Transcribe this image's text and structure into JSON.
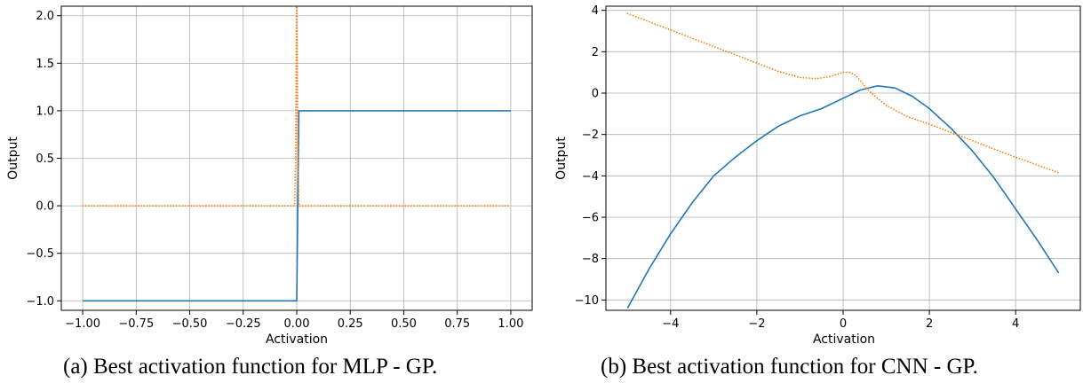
{
  "chart_data": [
    {
      "type": "line",
      "title": "",
      "xlabel": "Activation",
      "ylabel": "Output",
      "xlim": [
        -1.1,
        1.1
      ],
      "ylim": [
        -1.1,
        2.1
      ],
      "grid": true,
      "xticks": [
        -1.0,
        -0.75,
        -0.5,
        -0.25,
        0.0,
        0.25,
        0.5,
        0.75,
        1.0
      ],
      "xtick_labels": [
        "−1.00",
        "−0.75",
        "−0.50",
        "−0.25",
        "0.00",
        "0.25",
        "0.50",
        "0.75",
        "1.00"
      ],
      "yticks": [
        -1.0,
        -0.5,
        0.0,
        0.5,
        1.0,
        1.5,
        2.0
      ],
      "ytick_labels": [
        "−1.0",
        "−0.5",
        "0.0",
        "0.5",
        "1.0",
        "1.5",
        "2.0"
      ],
      "series": [
        {
          "style": "solid",
          "color": "#1f77b4",
          "x": [
            -1.0,
            0.0,
            0.01,
            1.0
          ],
          "y": [
            -1.0,
            -1.0,
            1.0,
            1.0
          ]
        },
        {
          "style": "dotted",
          "color": "#ff7f0e",
          "x": [
            -1.0,
            -0.01,
            -0.006,
            -0.003,
            0.0,
            0.003,
            0.006,
            0.01,
            1.0
          ],
          "y": [
            0.0,
            0.0,
            0.5,
            1.5,
            2.5,
            1.5,
            0.5,
            0.0,
            0.0
          ]
        }
      ]
    },
    {
      "type": "line",
      "title": "",
      "xlabel": "Activation",
      "ylabel": "Output",
      "xlim": [
        -5.5,
        5.5
      ],
      "ylim": [
        -10.5,
        4.2
      ],
      "grid": true,
      "xticks": [
        -4,
        -2,
        0,
        2,
        4
      ],
      "xtick_labels": [
        "−4",
        "−2",
        "0",
        "2",
        "4"
      ],
      "yticks": [
        -10,
        -8,
        -6,
        -4,
        -2,
        0,
        2,
        4
      ],
      "ytick_labels": [
        "−10",
        "−8",
        "−6",
        "−4",
        "−2",
        "0",
        "2",
        "4"
      ],
      "series": [
        {
          "style": "solid",
          "color": "#1f77b4",
          "x": [
            -5.0,
            -4.5,
            -4.0,
            -3.5,
            -3.0,
            -2.5,
            -2.0,
            -1.5,
            -1.0,
            -0.5,
            0.0,
            0.4,
            0.8,
            1.2,
            1.6,
            2.0,
            2.5,
            3.0,
            3.5,
            4.0,
            4.5,
            5.0
          ],
          "y": [
            -10.4,
            -8.5,
            -6.8,
            -5.3,
            -4.0,
            -3.1,
            -2.3,
            -1.6,
            -1.1,
            -0.75,
            -0.25,
            0.15,
            0.35,
            0.25,
            -0.15,
            -0.75,
            -1.7,
            -2.8,
            -4.1,
            -5.6,
            -7.1,
            -8.7
          ]
        },
        {
          "style": "dotted",
          "color": "#ff7f0e",
          "x": [
            -5.0,
            -4.0,
            -3.0,
            -2.0,
            -1.5,
            -1.0,
            -0.6,
            -0.3,
            0.0,
            0.15,
            0.3,
            0.6,
            1.0,
            1.5,
            2.0,
            3.0,
            4.0,
            5.0
          ],
          "y": [
            3.85,
            3.05,
            2.25,
            1.45,
            1.05,
            0.75,
            0.7,
            0.8,
            1.0,
            1.0,
            0.85,
            0.1,
            -0.6,
            -1.15,
            -1.5,
            -2.3,
            -3.1,
            -3.85
          ]
        }
      ]
    }
  ],
  "captions": {
    "a": "(a) Best activation function for MLP - GP.",
    "b": "(b) Best activation function for CNN - GP."
  }
}
